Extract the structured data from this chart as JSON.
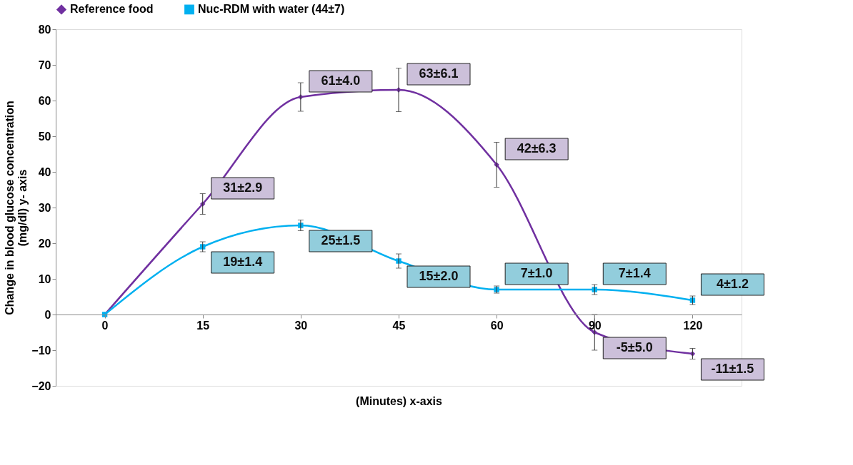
{
  "chart_data": {
    "type": "line",
    "xlabel": "(Minutes)   x-axis",
    "ylabel": [
      "Change in blood glucose concentration",
      "(mg/dl)  y- axis"
    ],
    "categories": [
      "0",
      "15",
      "30",
      "45",
      "60",
      "90",
      "120"
    ],
    "series": [
      {
        "name": "Reference food",
        "color": "#7030a0",
        "marker": "diamond",
        "values": [
          0,
          31,
          61,
          63,
          42,
          -5,
          -11
        ],
        "errors": [
          null,
          2.9,
          4.0,
          6.1,
          6.3,
          5.0,
          1.5
        ],
        "value_labels": [
          null,
          "31±2.9",
          "61±4.0",
          "63±6.1",
          "42±6.3",
          "-5±5.0",
          "-11±1.5"
        ]
      },
      {
        "name": "Nuc-RDM with water (44±7)",
        "color": "#00b0f0",
        "marker": "square",
        "values": [
          0,
          19,
          25,
          15,
          7,
          7,
          4
        ],
        "errors": [
          null,
          1.4,
          1.5,
          2.0,
          1.0,
          1.4,
          1.2
        ],
        "value_labels": [
          null,
          "19±1.4",
          "25±1.5",
          "15±2.0",
          "7±1.0",
          "7±1.4",
          "4±1.2"
        ]
      }
    ],
    "ylim": [
      -20,
      80
    ],
    "yticks": [
      -20,
      -10,
      0,
      10,
      20,
      30,
      40,
      50,
      60,
      70,
      80
    ],
    "legend": "top",
    "grid": false,
    "line_style": "solid"
  }
}
